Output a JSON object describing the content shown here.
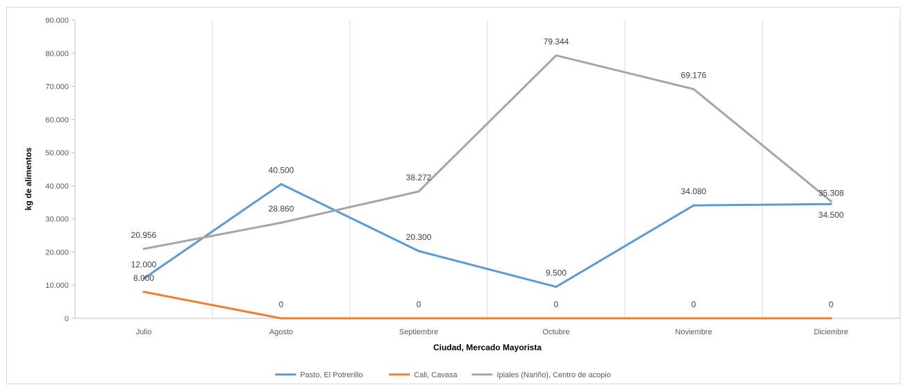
{
  "chart_data": {
    "type": "line",
    "title": "",
    "xlabel": "Ciudad, Mercado Mayorista",
    "ylabel": "kg de alimentos",
    "categories": [
      "Julio",
      "Agosto",
      "Septiembre",
      "Octubre",
      "Noviembre",
      "Diciembre"
    ],
    "ylim": [
      0,
      90000
    ],
    "yticks": [
      "0",
      "10.000",
      "20.000",
      "30.000",
      "40.000",
      "50.000",
      "60.000",
      "70.000",
      "80.000",
      "90.000"
    ],
    "grid": "vertical",
    "legend_position": "bottom",
    "series": [
      {
        "name": "Pasto, El Potrerillo",
        "color": "#5b9bd5",
        "values": [
          12000,
          40500,
          20300,
          9500,
          34080,
          34500
        ],
        "labels": [
          "12.000",
          "40.500",
          "20.300",
          "9.500",
          "34.080",
          "34.500"
        ]
      },
      {
        "name": "Cali, Cavasa",
        "color": "#ed7d31",
        "values": [
          8000,
          0,
          0,
          0,
          0,
          0
        ],
        "labels": [
          "8.000",
          "0",
          "0",
          "0",
          "0",
          "0"
        ]
      },
      {
        "name": "Ipiales (Nariño), Centro de acopio",
        "color": "#a5a5a5",
        "values": [
          20956,
          28860,
          38272,
          79344,
          69176,
          35308
        ],
        "labels": [
          "20.956",
          "28.860",
          "38.272",
          "79.344",
          "69.176",
          "35.308"
        ]
      }
    ]
  }
}
